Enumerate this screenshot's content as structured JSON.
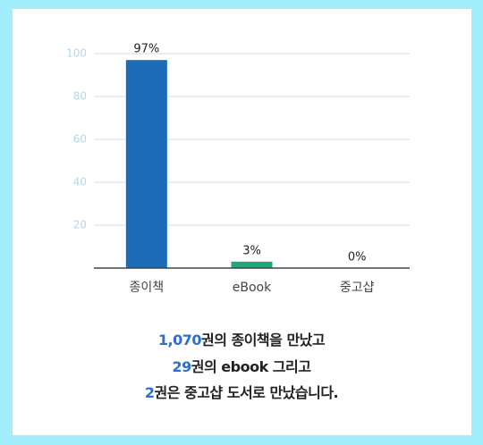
{
  "chart_data": {
    "type": "bar",
    "categories": [
      "종이책",
      "eBook",
      "중고샵"
    ],
    "values": [
      97,
      3,
      0
    ],
    "value_labels": [
      "97%",
      "3%",
      "0%"
    ],
    "colors": [
      "#1b6bb6",
      "#27a57a",
      "#27a57a"
    ],
    "ylim": [
      0,
      100
    ],
    "yticks": [
      20,
      40,
      60,
      80,
      100
    ],
    "grid": true
  },
  "summary": [
    {
      "number": "1,070",
      "text": "권의 종이책을 만났고"
    },
    {
      "number": "29",
      "text": "권의 ebook 그리고"
    },
    {
      "number": "2",
      "text": "권은 중고샵 도서로 만났습니다."
    }
  ]
}
